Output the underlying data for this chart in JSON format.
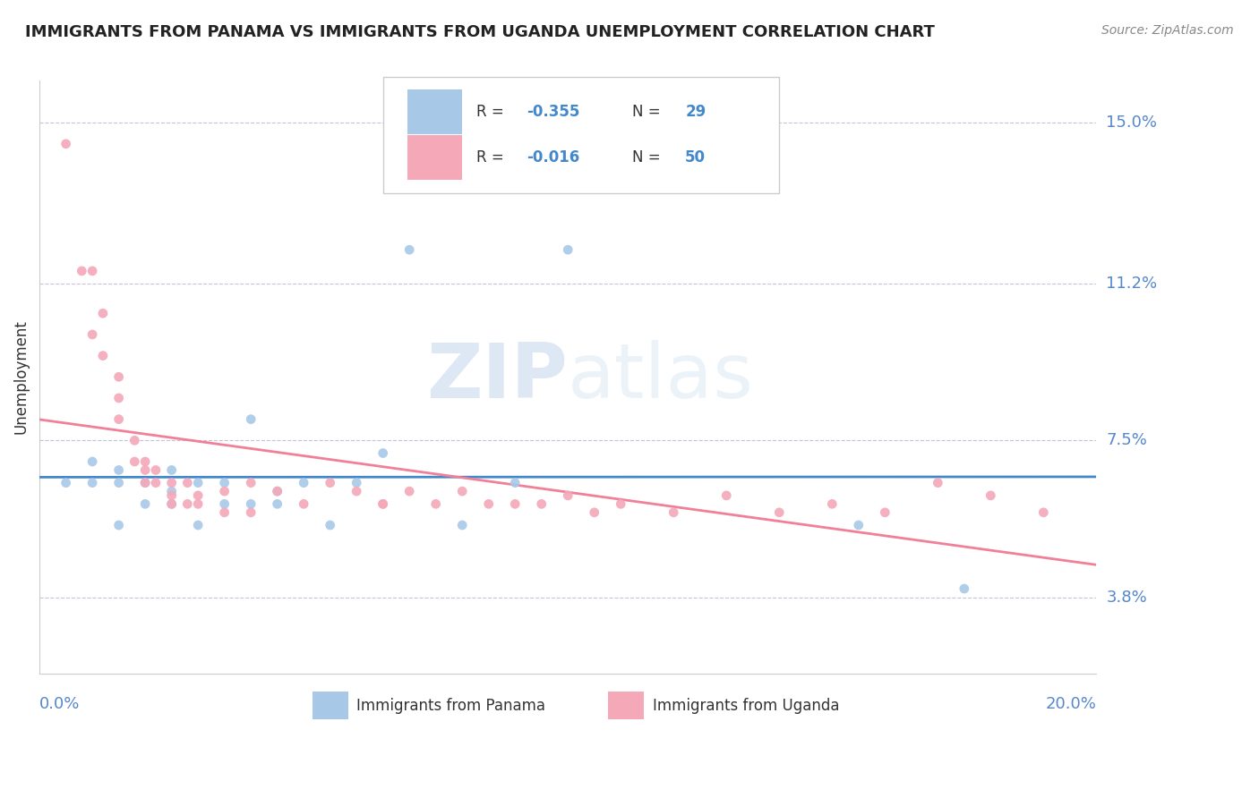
{
  "title": "IMMIGRANTS FROM PANAMA VS IMMIGRANTS FROM UGANDA UNEMPLOYMENT CORRELATION CHART",
  "source": "Source: ZipAtlas.com",
  "xlabel_bottom_left": "0.0%",
  "xlabel_bottom_right": "20.0%",
  "ylabel": "Unemployment",
  "yticks": [
    0.038,
    0.075,
    0.112,
    0.15
  ],
  "ytick_labels": [
    "3.8%",
    "7.5%",
    "11.2%",
    "15.0%"
  ],
  "xlim": [
    0.0,
    0.2
  ],
  "ylim": [
    0.02,
    0.16
  ],
  "panama_R": -0.355,
  "panama_N": 29,
  "uganda_R": -0.016,
  "uganda_N": 50,
  "panama_color": "#a8c8e8",
  "uganda_color": "#f4a8b8",
  "panama_line_color": "#4488cc",
  "uganda_line_color": "#f08098",
  "watermark_zip": "ZIP",
  "watermark_atlas": "atlas",
  "background_color": "#ffffff",
  "panama_x": [
    0.005,
    0.01,
    0.01,
    0.015,
    0.015,
    0.015,
    0.02,
    0.02,
    0.025,
    0.025,
    0.025,
    0.03,
    0.03,
    0.035,
    0.035,
    0.04,
    0.04,
    0.045,
    0.045,
    0.05,
    0.055,
    0.06,
    0.065,
    0.07,
    0.08,
    0.09,
    0.1,
    0.155,
    0.175
  ],
  "panama_y": [
    0.065,
    0.065,
    0.07,
    0.065,
    0.068,
    0.055,
    0.06,
    0.065,
    0.063,
    0.06,
    0.068,
    0.055,
    0.065,
    0.06,
    0.065,
    0.06,
    0.08,
    0.06,
    0.063,
    0.065,
    0.055,
    0.065,
    0.072,
    0.12,
    0.055,
    0.065,
    0.12,
    0.055,
    0.04
  ],
  "uganda_x": [
    0.005,
    0.008,
    0.01,
    0.01,
    0.012,
    0.012,
    0.015,
    0.015,
    0.015,
    0.018,
    0.018,
    0.02,
    0.02,
    0.02,
    0.022,
    0.022,
    0.025,
    0.025,
    0.025,
    0.028,
    0.028,
    0.03,
    0.03,
    0.035,
    0.035,
    0.04,
    0.04,
    0.045,
    0.05,
    0.055,
    0.06,
    0.065,
    0.065,
    0.07,
    0.075,
    0.08,
    0.085,
    0.09,
    0.095,
    0.1,
    0.105,
    0.11,
    0.12,
    0.13,
    0.14,
    0.15,
    0.16,
    0.17,
    0.18,
    0.19
  ],
  "uganda_y": [
    0.145,
    0.115,
    0.115,
    0.1,
    0.105,
    0.095,
    0.09,
    0.085,
    0.08,
    0.075,
    0.07,
    0.07,
    0.068,
    0.065,
    0.068,
    0.065,
    0.065,
    0.062,
    0.06,
    0.065,
    0.06,
    0.062,
    0.06,
    0.063,
    0.058,
    0.065,
    0.058,
    0.063,
    0.06,
    0.065,
    0.063,
    0.06,
    0.06,
    0.063,
    0.06,
    0.063,
    0.06,
    0.06,
    0.06,
    0.062,
    0.058,
    0.06,
    0.058,
    0.062,
    0.058,
    0.06,
    0.058,
    0.065,
    0.062,
    0.058
  ]
}
